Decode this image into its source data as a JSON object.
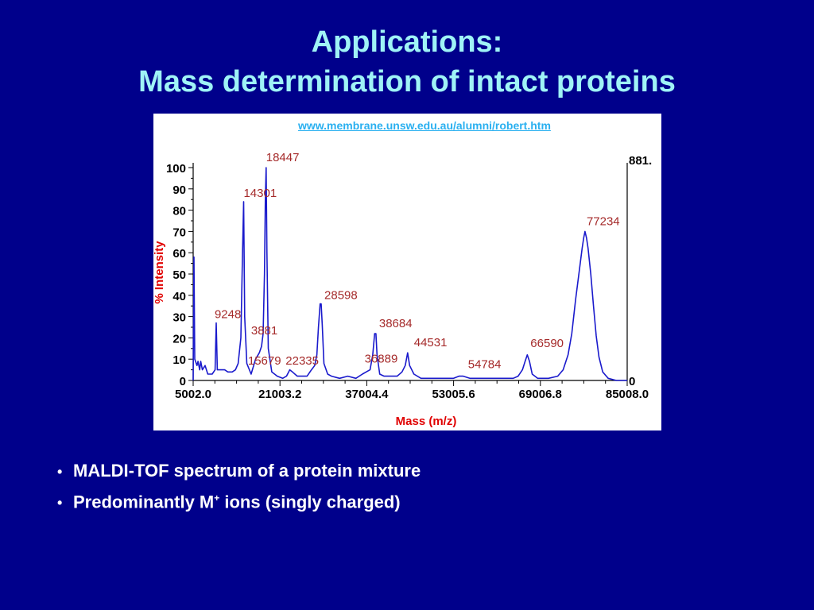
{
  "slide": {
    "title_line1": "Applications:",
    "title_line2": "Mass determination of intact proteins",
    "source_url": "www.membrane.unsw.edu.au/alumni/robert.htm",
    "bullets": [
      {
        "text": "MALDI-TOF spectrum of a protein mixture"
      },
      {
        "pre": "Predominantly M",
        "sup": "+",
        "post": " ions (singly charged)"
      }
    ],
    "colors": {
      "background": "#00008b",
      "title": "#9ff3f6",
      "link": "#2ab0f0",
      "bullet_text": "#ffffff"
    }
  },
  "chart_data": {
    "type": "line",
    "xlabel": "Mass (m/z)",
    "ylabel": "% Intensity",
    "x_ticks": [
      "5002.0",
      "21003.2",
      "37004.4",
      "53005.6",
      "69006.8",
      "85008.0"
    ],
    "y_ticks": [
      "0",
      "10",
      "20",
      "30",
      "40",
      "50",
      "60",
      "70",
      "80",
      "90",
      "100"
    ],
    "right_axis_top_label": "881.",
    "right_axis_bottom_label": "0",
    "xlim": [
      5002.0,
      85008.0
    ],
    "ylim": [
      0,
      100
    ],
    "grid": false,
    "colors": {
      "line": "#1a1acc",
      "peak_label": "#a52a2a",
      "axis_label": "#e00000",
      "axes": "#000000"
    },
    "series": [
      {
        "values": [
          [
            5002,
            0
          ],
          [
            5150,
            58
          ],
          [
            5300,
            10
          ],
          [
            5700,
            7
          ],
          [
            5900,
            9
          ],
          [
            6200,
            5
          ],
          [
            6400,
            9
          ],
          [
            6700,
            5
          ],
          [
            7200,
            7
          ],
          [
            7700,
            3
          ],
          [
            8500,
            3
          ],
          [
            9050,
            5
          ],
          [
            9248,
            27
          ],
          [
            9450,
            5
          ],
          [
            10000,
            5
          ],
          [
            10800,
            5
          ],
          [
            11400,
            4
          ],
          [
            12200,
            4
          ],
          [
            12800,
            5
          ],
          [
            13300,
            8
          ],
          [
            13800,
            20
          ],
          [
            14100,
            60
          ],
          [
            14301,
            84
          ],
          [
            14500,
            30
          ],
          [
            14900,
            8
          ],
          [
            15679,
            3
          ],
          [
            16500,
            10
          ],
          [
            17200,
            13
          ],
          [
            17600,
            16
          ],
          [
            17900,
            22
          ],
          [
            18150,
            50
          ],
          [
            18300,
            85
          ],
          [
            18447,
            100
          ],
          [
            18600,
            60
          ],
          [
            18850,
            15
          ],
          [
            19500,
            4
          ],
          [
            20500,
            2
          ],
          [
            21500,
            1
          ],
          [
            22200,
            2
          ],
          [
            22800,
            5
          ],
          [
            23300,
            4
          ],
          [
            24200,
            2
          ],
          [
            26000,
            2
          ],
          [
            26800,
            5
          ],
          [
            27400,
            7
          ],
          [
            27800,
            12
          ],
          [
            28100,
            25
          ],
          [
            28400,
            36
          ],
          [
            28598,
            36
          ],
          [
            28800,
            26
          ],
          [
            29100,
            8
          ],
          [
            29800,
            3
          ],
          [
            30500,
            2
          ],
          [
            32000,
            1
          ],
          [
            33500,
            2
          ],
          [
            35000,
            1
          ],
          [
            36200,
            3
          ],
          [
            36889,
            4
          ],
          [
            37600,
            5
          ],
          [
            38100,
            12
          ],
          [
            38450,
            22
          ],
          [
            38684,
            22
          ],
          [
            38900,
            12
          ],
          [
            39400,
            3
          ],
          [
            40200,
            2
          ],
          [
            41800,
            2
          ],
          [
            42600,
            2
          ],
          [
            43500,
            4
          ],
          [
            44100,
            7
          ],
          [
            44531,
            13
          ],
          [
            44900,
            7
          ],
          [
            45700,
            3
          ],
          [
            47000,
            1
          ],
          [
            49000,
            1
          ],
          [
            51000,
            1
          ],
          [
            53000,
            1
          ],
          [
            54000,
            2
          ],
          [
            54784,
            2
          ],
          [
            56000,
            1
          ],
          [
            58000,
            1
          ],
          [
            60000,
            1
          ],
          [
            62000,
            1
          ],
          [
            64000,
            1
          ],
          [
            64900,
            2
          ],
          [
            65700,
            5
          ],
          [
            66200,
            9
          ],
          [
            66590,
            12
          ],
          [
            67000,
            9
          ],
          [
            67500,
            3
          ],
          [
            68500,
            1
          ],
          [
            70500,
            1
          ],
          [
            72200,
            2
          ],
          [
            73200,
            5
          ],
          [
            74100,
            12
          ],
          [
            74800,
            22
          ],
          [
            75500,
            38
          ],
          [
            76200,
            52
          ],
          [
            76700,
            62
          ],
          [
            77000,
            67
          ],
          [
            77234,
            70
          ],
          [
            77500,
            67
          ],
          [
            77800,
            62
          ],
          [
            78300,
            50
          ],
          [
            78800,
            35
          ],
          [
            79300,
            21
          ],
          [
            79800,
            11
          ],
          [
            80500,
            4
          ],
          [
            81500,
            1
          ],
          [
            83000,
            0
          ],
          [
            85008,
            0
          ]
        ]
      }
    ],
    "peak_labels": [
      {
        "text": "18447",
        "x": 18447,
        "y": 100
      },
      {
        "text": "14301",
        "x": 14301,
        "y": 84
      },
      {
        "text": "77234",
        "x": 77234,
        "y": 70
      },
      {
        "text": "9248",
        "x": 9248,
        "y": 27
      },
      {
        "text": "28598",
        "x": 28598,
        "y": 36
      },
      {
        "text": "38684",
        "x": 38684,
        "y": 22
      },
      {
        "text": "44531",
        "x": 44531,
        "y": 13
      },
      {
        "text": "3881",
        "x": 15679,
        "y": 15
      },
      {
        "text": "15679",
        "x": 15679,
        "y": 3
      },
      {
        "text": "22335",
        "x": 22335,
        "y": 3
      },
      {
        "text": "36889",
        "x": 36889,
        "y": 4
      },
      {
        "text": "54784",
        "x": 54784,
        "y": 2
      },
      {
        "text": "66590",
        "x": 66590,
        "y": 12
      }
    ]
  }
}
